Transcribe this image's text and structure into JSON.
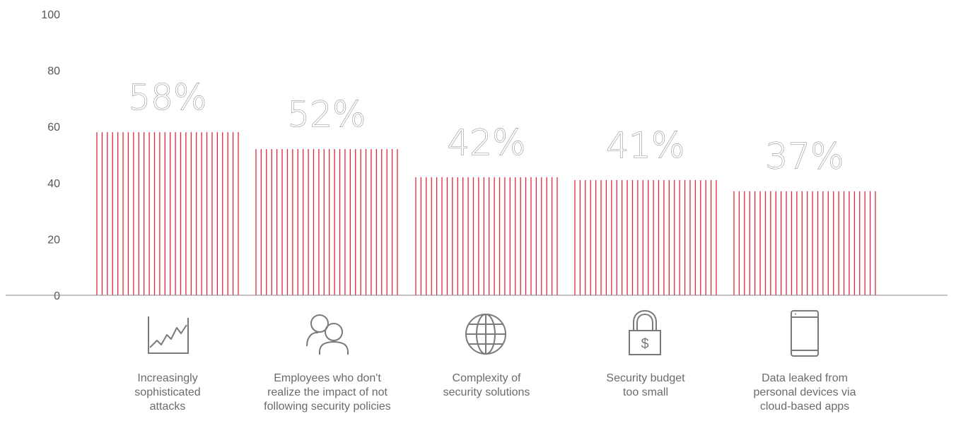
{
  "chart_data": {
    "type": "bar",
    "categories": [
      "Increasingly\nsophisticated\nattacks",
      "Employees who don't\nrealize the impact of not\nfollowing security policies",
      "Complexity of\nsecurity solutions",
      "Security budget\ntoo small",
      "Data leaked from\npersonal devices via\ncloud-based apps"
    ],
    "values": [
      58,
      52,
      42,
      41,
      37
    ],
    "value_labels": [
      "58%",
      "52%",
      "42%",
      "41%",
      "37%"
    ],
    "ylim": [
      0,
      100
    ],
    "yticks": [
      0,
      20,
      40,
      60,
      80,
      100
    ],
    "ytick_labels": [
      "0",
      "20",
      "40",
      "60",
      "80",
      "100"
    ],
    "title": "",
    "xlabel": "",
    "ylabel": "",
    "grid": false,
    "legend": "none",
    "bar_color": "#e0263a",
    "icons": [
      "stock-chart-icon",
      "people-icon",
      "globe-icon",
      "padlock-dollar-icon",
      "smartphone-icon"
    ],
    "padlock_glyph": "$"
  }
}
